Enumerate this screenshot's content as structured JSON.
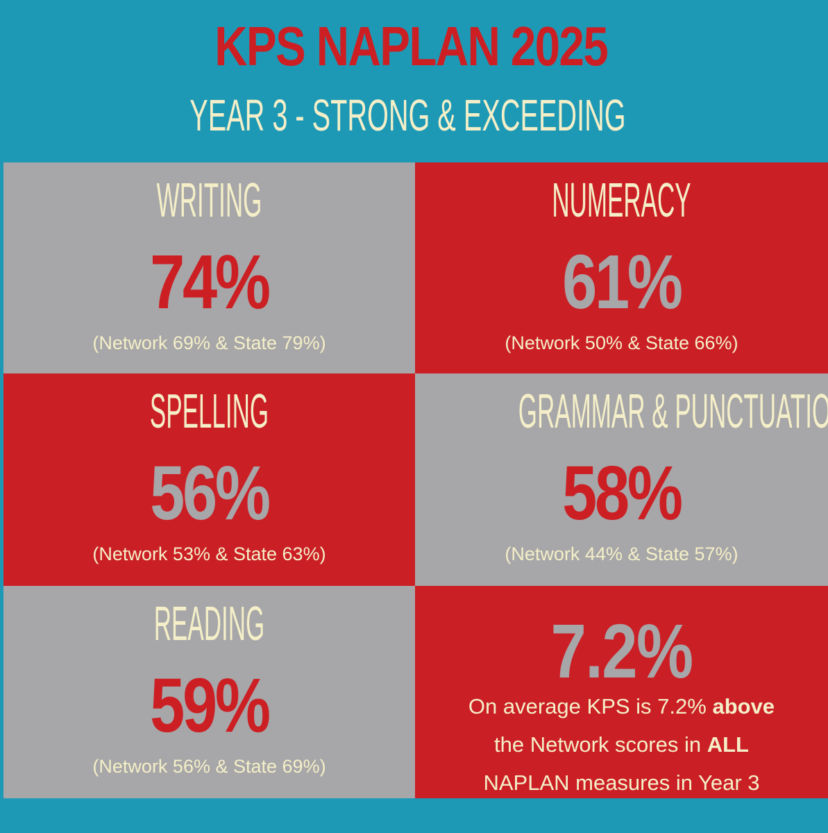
{
  "header": {
    "title": "KPS NAPLAN 2025",
    "subtitle": "YEAR 3 - STRONG & EXCEEDING"
  },
  "colors": {
    "header_bg": "#1e99b5",
    "red": "#cb1f26",
    "grey": "#a7a6a8",
    "cream": "#f4efc8"
  },
  "cells": [
    {
      "subject": "WRITING",
      "percent": "74%",
      "comparison": "(Network 69% & State 79%)"
    },
    {
      "subject": "NUMERACY",
      "percent": "61%",
      "comparison": "(Network 50% & State 66%)"
    },
    {
      "subject": "SPELLING",
      "percent": "56%",
      "comparison": "(Network 53% & State 63%)"
    },
    {
      "subject": "GRAMMAR & PUNCTUATION",
      "percent": "58%",
      "comparison": "(Network 44% & State 57%)"
    },
    {
      "subject": "READING",
      "percent": "59%",
      "comparison": "(Network 56% & State 69%)"
    }
  ],
  "summary": {
    "percent": "7.2%",
    "line1_pre": "On average KPS is 7.2% ",
    "line1_bold": "above",
    "line2_pre": "the Network scores in ",
    "line2_bold": "ALL",
    "line3": "NAPLAN measures in Year 3"
  }
}
